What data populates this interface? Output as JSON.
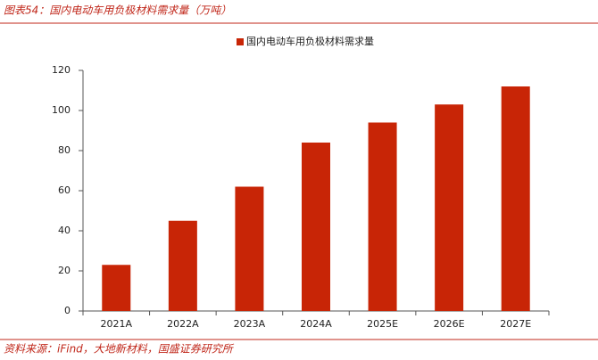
{
  "chart_data": {
    "type": "bar",
    "title": "图表54：国内电动车用负极材料需求量（万吨）",
    "source": "资料来源：iFind，大地新材料，国盛证券研究所",
    "categories": [
      "2021A",
      "2022A",
      "2023A",
      "2024A",
      "2025E",
      "2026E",
      "2027E"
    ],
    "series": [
      {
        "name": "国内电动车用负极材料需求量",
        "color": "#c82506",
        "values": [
          23,
          45,
          62,
          84,
          94,
          103,
          112
        ]
      }
    ],
    "ylim": [
      0,
      120
    ],
    "yticks": [
      0,
      20,
      40,
      60,
      80,
      100,
      120
    ],
    "grid": false,
    "legend": "top"
  }
}
